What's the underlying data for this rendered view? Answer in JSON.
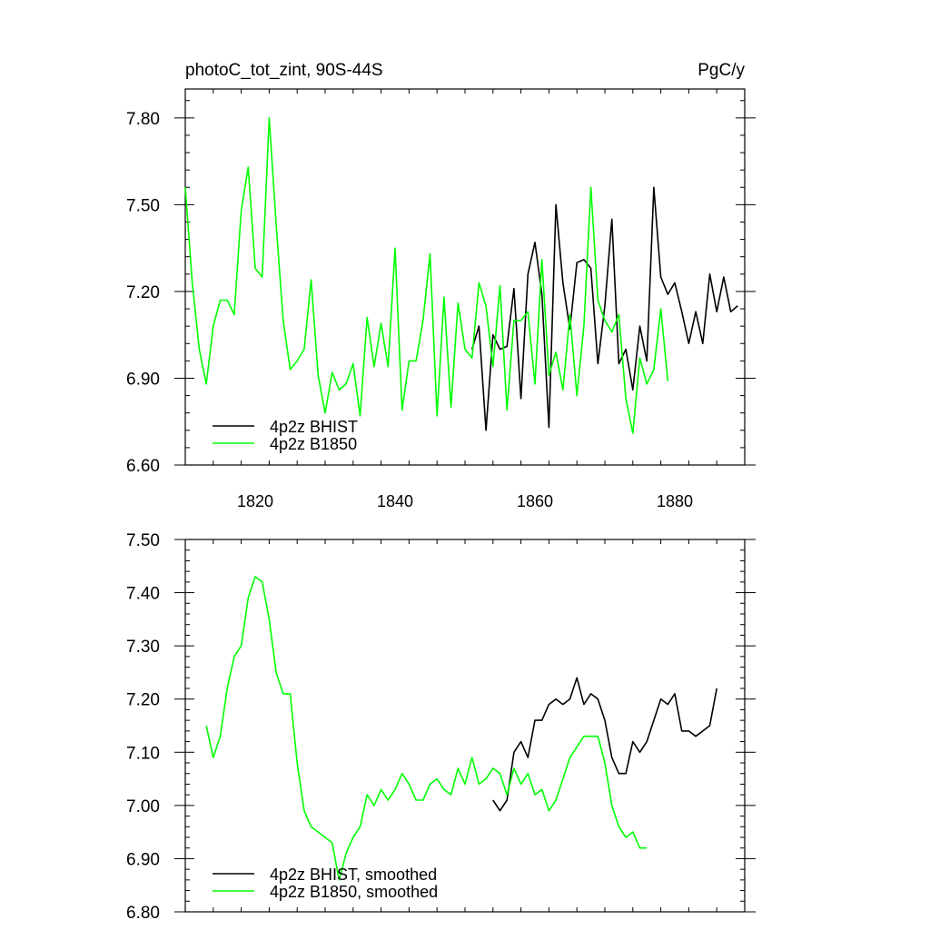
{
  "chart_data": [
    {
      "type": "line",
      "title": "photoC_tot_zint, 90S-44S",
      "units": "PgC/y",
      "xlim": [
        1810,
        1890
      ],
      "ylim": [
        6.6,
        7.9
      ],
      "xticks": [
        1820,
        1840,
        1860,
        1880
      ],
      "xtick_labels": [
        "1820",
        "1840",
        "1860",
        "1880"
      ],
      "yticks": [
        6.6,
        6.9,
        7.2,
        7.5,
        7.8
      ],
      "ytick_labels": [
        "6.60",
        "6.90",
        "7.20",
        "7.50",
        "7.80"
      ],
      "legend_position": "bottom-left",
      "series": [
        {
          "name": "4p2z BHIST",
          "color": "#000000",
          "x": [
            1851,
            1852,
            1853,
            1854,
            1855,
            1856,
            1857,
            1858,
            1859,
            1860,
            1861,
            1862,
            1863,
            1864,
            1865,
            1866,
            1867,
            1868,
            1869,
            1870,
            1871,
            1872,
            1873,
            1874,
            1875,
            1876,
            1877,
            1878,
            1879,
            1880,
            1881,
            1882,
            1883,
            1884,
            1885,
            1886,
            1887,
            1888,
            1889
          ],
          "y": [
            7.0,
            7.08,
            6.72,
            7.05,
            7.0,
            7.01,
            7.21,
            6.83,
            7.26,
            7.37,
            7.19,
            6.73,
            7.5,
            7.23,
            7.07,
            7.3,
            7.31,
            7.28,
            6.95,
            7.15,
            7.45,
            6.95,
            7.0,
            6.86,
            7.08,
            6.96,
            7.56,
            7.25,
            7.19,
            7.23,
            7.13,
            7.02,
            7.13,
            7.02,
            7.26,
            7.13,
            7.25,
            7.13,
            7.15
          ]
        },
        {
          "name": "4p2z B1850",
          "color": "#00ff00",
          "x": [
            1810,
            1811,
            1812,
            1813,
            1814,
            1815,
            1816,
            1817,
            1818,
            1819,
            1820,
            1821,
            1822,
            1823,
            1824,
            1825,
            1826,
            1827,
            1828,
            1829,
            1830,
            1831,
            1832,
            1833,
            1834,
            1835,
            1836,
            1837,
            1838,
            1839,
            1840,
            1841,
            1842,
            1843,
            1844,
            1845,
            1846,
            1847,
            1848,
            1849,
            1850,
            1851,
            1852,
            1853,
            1854,
            1855,
            1856,
            1857,
            1858,
            1859,
            1860,
            1861,
            1862,
            1863,
            1864,
            1865,
            1866,
            1867,
            1868,
            1869,
            1870,
            1871,
            1872,
            1873,
            1874,
            1875,
            1876,
            1877,
            1878,
            1879
          ],
          "y": [
            7.56,
            7.23,
            7.0,
            6.88,
            7.08,
            7.17,
            7.17,
            7.12,
            7.48,
            7.63,
            7.28,
            7.25,
            7.8,
            7.43,
            7.1,
            6.93,
            6.96,
            7.0,
            7.24,
            6.91,
            6.78,
            6.92,
            6.86,
            6.88,
            6.95,
            6.77,
            7.11,
            6.94,
            7.09,
            6.94,
            7.35,
            6.79,
            6.96,
            6.96,
            7.1,
            7.33,
            6.77,
            7.18,
            6.8,
            7.16,
            7.0,
            6.97,
            7.23,
            7.15,
            6.94,
            7.22,
            6.79,
            7.1,
            7.1,
            7.13,
            6.88,
            7.31,
            6.91,
            6.99,
            6.86,
            7.12,
            6.84,
            7.08,
            7.56,
            7.17,
            7.1,
            7.06,
            7.12,
            6.83,
            6.71,
            6.97,
            6.88,
            6.93,
            7.14,
            6.89
          ]
        }
      ]
    },
    {
      "type": "line",
      "xlim": [
        1810,
        1890
      ],
      "ylim": [
        6.8,
        7.5
      ],
      "xticks": [
        1820,
        1840,
        1860,
        1880
      ],
      "yticks": [
        6.8,
        6.9,
        7.0,
        7.1,
        7.2,
        7.3,
        7.4,
        7.5
      ],
      "ytick_labels": [
        "6.80",
        "6.90",
        "7.00",
        "7.10",
        "7.20",
        "7.30",
        "7.40",
        "7.50"
      ],
      "legend_position": "bottom-left",
      "series": [
        {
          "name": "4p2z BHIST, smoothed",
          "color": "#000000",
          "x": [
            1854,
            1855,
            1856,
            1857,
            1858,
            1859,
            1860,
            1861,
            1862,
            1863,
            1864,
            1865,
            1866,
            1867,
            1868,
            1869,
            1870,
            1871,
            1872,
            1873,
            1874,
            1875,
            1876,
            1877,
            1878,
            1879,
            1880,
            1881,
            1882,
            1883,
            1884,
            1885,
            1886
          ],
          "y": [
            7.01,
            6.99,
            7.01,
            7.1,
            7.12,
            7.09,
            7.16,
            7.16,
            7.19,
            7.2,
            7.19,
            7.2,
            7.24,
            7.19,
            7.21,
            7.2,
            7.16,
            7.09,
            7.06,
            7.06,
            7.12,
            7.1,
            7.12,
            7.16,
            7.2,
            7.19,
            7.21,
            7.14,
            7.14,
            7.13,
            7.14,
            7.15,
            7.22
          ]
        },
        {
          "name": "4p2z B1850, smoothed",
          "color": "#00ff00",
          "x": [
            1813,
            1814,
            1815,
            1816,
            1817,
            1818,
            1819,
            1820,
            1821,
            1822,
            1823,
            1824,
            1825,
            1826,
            1827,
            1828,
            1829,
            1830,
            1831,
            1832,
            1833,
            1834,
            1835,
            1836,
            1837,
            1838,
            1839,
            1840,
            1841,
            1842,
            1843,
            1844,
            1845,
            1846,
            1847,
            1848,
            1849,
            1850,
            1851,
            1852,
            1853,
            1854,
            1855,
            1856,
            1857,
            1858,
            1859,
            1860,
            1861,
            1862,
            1863,
            1864,
            1865,
            1866,
            1867,
            1868,
            1869,
            1870,
            1871,
            1872,
            1873,
            1874,
            1875,
            1876
          ],
          "y": [
            7.15,
            7.09,
            7.13,
            7.22,
            7.28,
            7.3,
            7.39,
            7.43,
            7.42,
            7.35,
            7.25,
            7.21,
            7.21,
            7.08,
            6.99,
            6.96,
            6.95,
            6.94,
            6.93,
            6.86,
            6.91,
            6.94,
            6.96,
            7.02,
            7.0,
            7.03,
            7.01,
            7.03,
            7.06,
            7.04,
            7.01,
            7.01,
            7.04,
            7.05,
            7.03,
            7.02,
            7.07,
            7.04,
            7.09,
            7.04,
            7.05,
            7.07,
            7.06,
            7.02,
            7.07,
            7.04,
            7.06,
            7.02,
            7.03,
            6.99,
            7.01,
            7.05,
            7.09,
            7.11,
            7.13,
            7.13,
            7.13,
            7.08,
            7.0,
            6.96,
            6.94,
            6.95,
            6.92,
            6.92
          ]
        }
      ]
    }
  ]
}
